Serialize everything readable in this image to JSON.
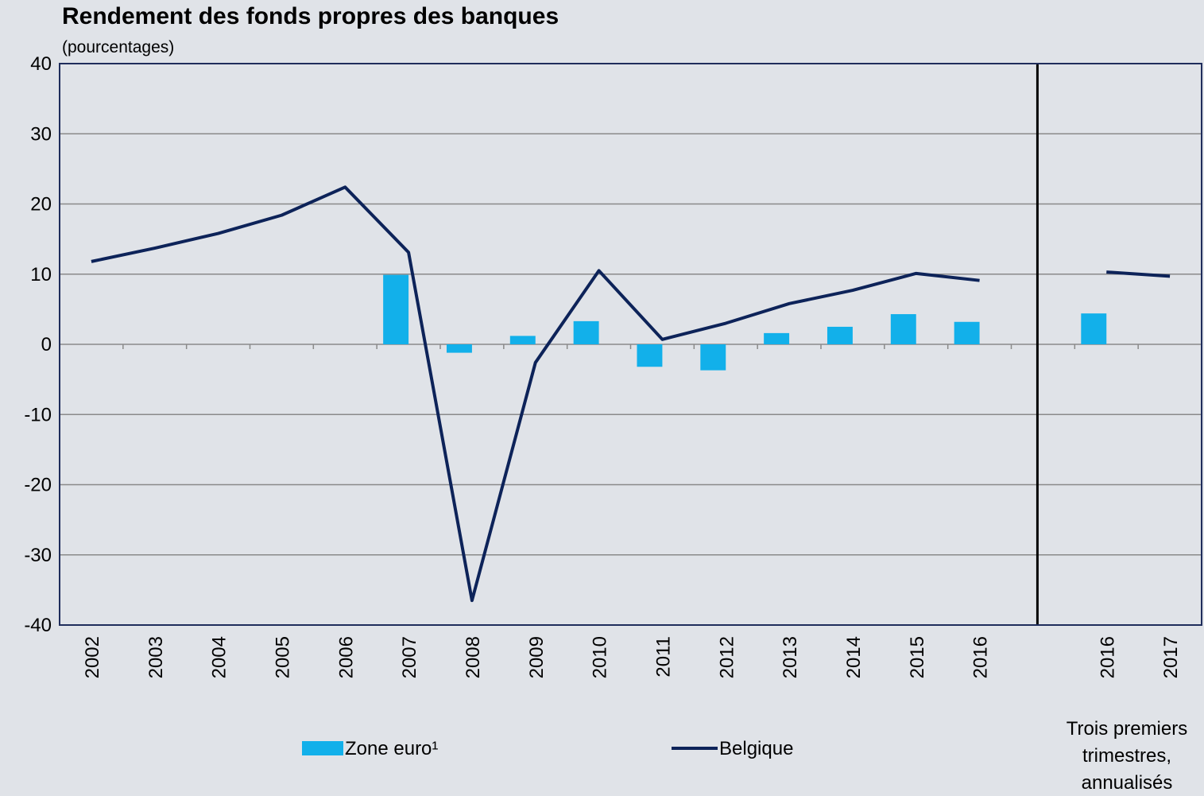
{
  "chart_data": {
    "type": "bar-line",
    "title": "Rendement des fonds propres des banques",
    "subtitle": "(pourcentages)",
    "categories": [
      "2002",
      "2003",
      "2004",
      "2005",
      "2006",
      "2007",
      "2008",
      "2009",
      "2010",
      "2011",
      "2012",
      "2013",
      "2014",
      "2015",
      "2016",
      null,
      "2016",
      "2017"
    ],
    "series": [
      {
        "name": "Zone euro¹",
        "type": "bar",
        "color": "#12b0ea",
        "values": [
          null,
          null,
          null,
          null,
          null,
          9.9,
          -1.2,
          1.2,
          3.3,
          -3.2,
          -3.7,
          1.6,
          2.5,
          4.3,
          3.2,
          null,
          4.4,
          null
        ]
      },
      {
        "name": "Belgique",
        "type": "line",
        "color": "#0d2359",
        "values": [
          11.8,
          13.7,
          15.8,
          18.4,
          22.4,
          13.1,
          -36.5,
          -2.6,
          10.5,
          0.7,
          3.0,
          5.8,
          7.7,
          10.1,
          9.1,
          null,
          10.3,
          9.7
        ]
      }
    ],
    "annotation": [
      "Trois premiers",
      "trimestres,",
      "annualisés"
    ],
    "ylim": [
      -40,
      40
    ],
    "yticks": [
      -40,
      -30,
      -20,
      -10,
      0,
      10,
      20,
      30,
      40
    ],
    "grid": true
  }
}
